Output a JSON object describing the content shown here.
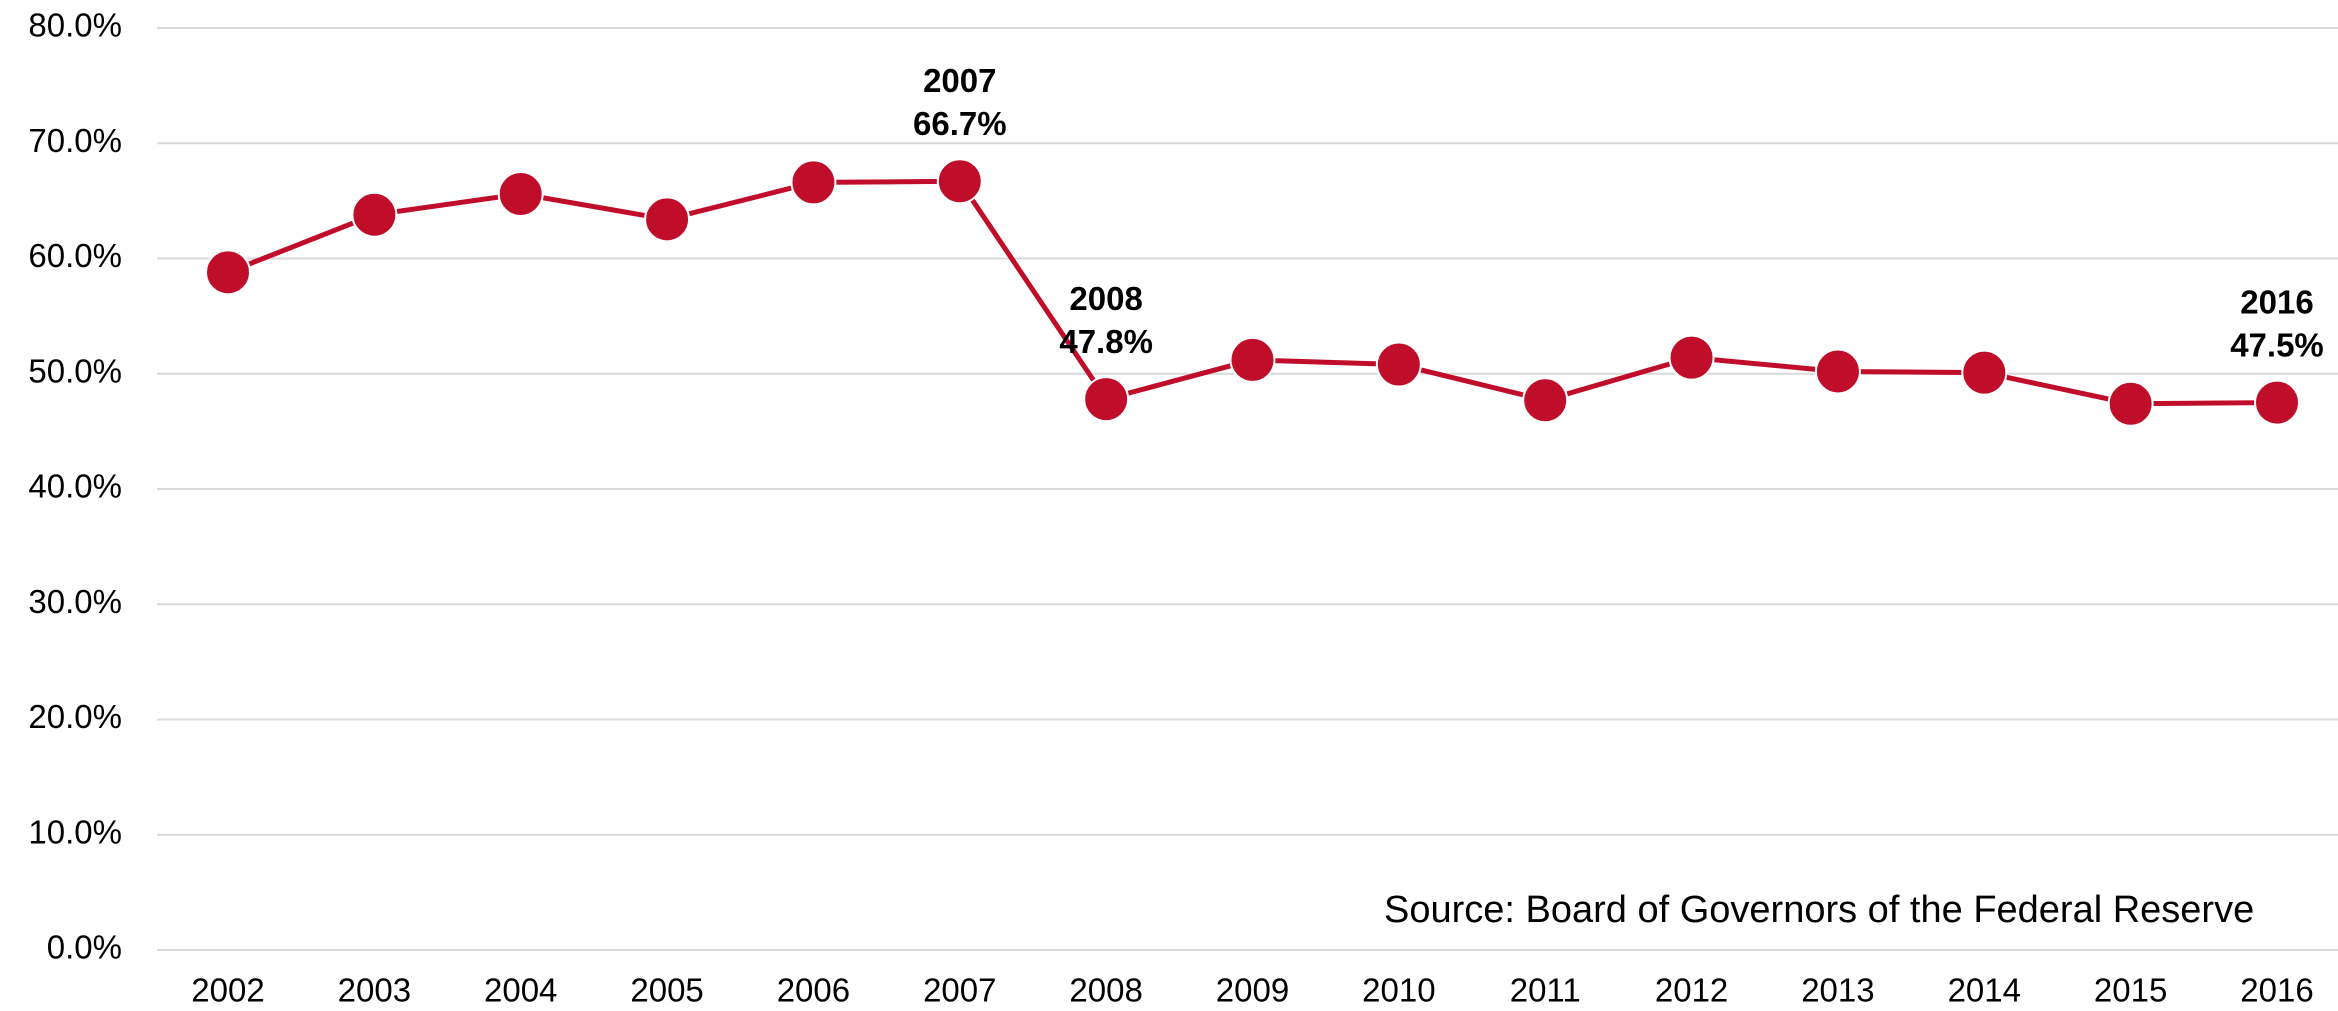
{
  "chart_data": {
    "type": "line",
    "categories": [
      "2002",
      "2003",
      "2004",
      "2005",
      "2006",
      "2007",
      "2008",
      "2009",
      "2010",
      "2011",
      "2012",
      "2013",
      "2014",
      "2015",
      "2016"
    ],
    "series": [
      {
        "color": "#c00d2a",
        "values": [
          58.8,
          63.8,
          65.6,
          63.4,
          66.6,
          66.7,
          47.8,
          51.2,
          50.8,
          47.7,
          51.4,
          50.2,
          50.1,
          47.4,
          47.5
        ],
        "value_labels": [
          null,
          null,
          null,
          null,
          null,
          "66.7%",
          "47.8%",
          null,
          null,
          null,
          null,
          null,
          null,
          null,
          "47.5%"
        ]
      }
    ],
    "ylim": [
      0,
      80
    ],
    "yticks": [
      {
        "value": 0,
        "label": "0.0%"
      },
      {
        "value": 10,
        "label": "10.0%"
      },
      {
        "value": 20,
        "label": "20.0%"
      },
      {
        "value": 30,
        "label": "30.0%"
      },
      {
        "value": 40,
        "label": "40.0%"
      },
      {
        "value": 50,
        "label": "50.0%"
      },
      {
        "value": 60,
        "label": "60.0%"
      },
      {
        "value": 70,
        "label": "70.0%"
      },
      {
        "value": 80,
        "label": "80.0%"
      }
    ],
    "grid": true,
    "source": "Source: Board of Governors of the Federal Reserve"
  }
}
